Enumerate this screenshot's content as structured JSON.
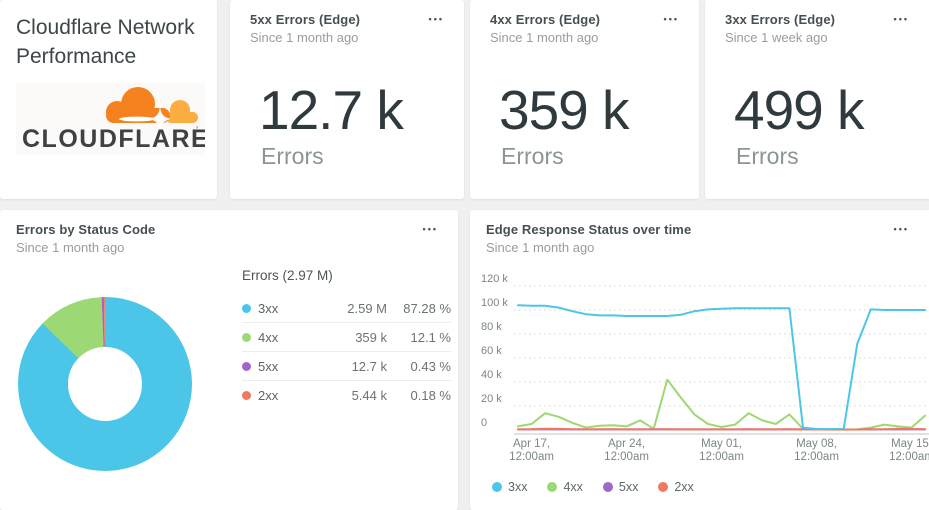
{
  "palette": {
    "c3xx": "#4cc6e8",
    "c4xx": "#9cd873",
    "c5xx": "#a266c8",
    "c2xx": "#f0785c",
    "cloudflare_orange": "#f6821f",
    "cloudflare_light_orange": "#fbad41"
  },
  "icons": {
    "menu_dots": "•••"
  },
  "header_card": {
    "title": "Cloudflare Network Performance",
    "logo_text": "CLOUDFLARE"
  },
  "metric_cards": [
    {
      "title": "5xx Errors (Edge)",
      "subtitle": "Since 1 month ago",
      "value": "12.7 k",
      "label": "Errors"
    },
    {
      "title": "4xx Errors (Edge)",
      "subtitle": "Since 1 month ago",
      "value": "359 k",
      "label": "Errors"
    },
    {
      "title": "3xx Errors (Edge)",
      "subtitle": "Since 1 week ago",
      "value": "499 k",
      "label": "Errors"
    }
  ],
  "pie_card": {
    "title": "Errors by Status Code",
    "subtitle": "Since 1 month ago",
    "table_title": "Errors (2.97 M)"
  },
  "line_card": {
    "title": "Edge Response Status over time",
    "subtitle": "Since 1 month ago"
  },
  "chart_data": [
    {
      "type": "pie",
      "title": "Errors by Status Code",
      "total_label": "Errors (2.97 M)",
      "legend_position": "right-table",
      "slices": [
        {
          "name": "3xx",
          "value_label": "2.59 M",
          "pct": 87.28,
          "pct_label": "87.28 %",
          "color": "#4cc6e8"
        },
        {
          "name": "4xx",
          "value_label": "359 k",
          "pct": 12.1,
          "pct_label": "12.1 %",
          "color": "#9cd873"
        },
        {
          "name": "5xx",
          "value_label": "12.7 k",
          "pct": 0.43,
          "pct_label": "0.43 %",
          "color": "#a266c8"
        },
        {
          "name": "2xx",
          "value_label": "5.44 k",
          "pct": 0.18,
          "pct_label": "0.18 %",
          "color": "#f0785c"
        }
      ]
    },
    {
      "type": "line",
      "title": "Edge Response Status over time",
      "xlabel": "",
      "ylabel": "",
      "ylim_k": [
        0,
        130
      ],
      "grid": "dotted-horizontal",
      "legend_position": "bottom-left",
      "y_ticks": [
        {
          "value_k": 0,
          "label": "0"
        },
        {
          "value_k": 20,
          "label": "20 k"
        },
        {
          "value_k": 40,
          "label": "40 k"
        },
        {
          "value_k": 60,
          "label": "60 k"
        },
        {
          "value_k": 80,
          "label": "80 k"
        },
        {
          "value_k": 100,
          "label": "100 k"
        },
        {
          "value_k": 120,
          "label": "120 k"
        }
      ],
      "x_ticks": [
        {
          "day": 1,
          "line1": "Apr 17,",
          "line2": "12:00am"
        },
        {
          "day": 8,
          "line1": "Apr 24,",
          "line2": "12:00am"
        },
        {
          "day": 15,
          "line1": "May 01,",
          "line2": "12:00am"
        },
        {
          "day": 22,
          "line1": "May 08,",
          "line2": "12:00am"
        },
        {
          "day": 29,
          "line1": "May 15,",
          "line2": "12:00am"
        }
      ],
      "x": [
        "Apr 16",
        "Apr 17",
        "Apr 18",
        "Apr 19",
        "Apr 20",
        "Apr 21",
        "Apr 22",
        "Apr 23",
        "Apr 24",
        "Apr 25",
        "Apr 26",
        "Apr 27",
        "Apr 28",
        "Apr 29",
        "Apr 30",
        "May 01",
        "May 02",
        "May 03",
        "May 04",
        "May 05",
        "May 06",
        "May 07",
        "May 08",
        "May 09",
        "May 10",
        "May 11",
        "May 12",
        "May 13",
        "May 14",
        "May 15",
        "May 16"
      ],
      "values_unit": "k",
      "series": [
        {
          "name": "4xx",
          "color": "#9cd873",
          "values": [
            3,
            5,
            14,
            11,
            6,
            2,
            3.5,
            4,
            3,
            8,
            1,
            42,
            27,
            13,
            5,
            2.5,
            4.5,
            14,
            8,
            5,
            13,
            1,
            0.5,
            0.3,
            0.3,
            0.5,
            2,
            4.5,
            3,
            2,
            12
          ]
        },
        {
          "name": "5xx",
          "color": "#a266c8",
          "values": [
            0.5,
            0.5,
            0.5,
            0.5,
            0.5,
            0.5,
            0.5,
            0.5,
            0.5,
            0.5,
            0.5,
            0.5,
            0.5,
            0.5,
            0.5,
            0.5,
            0.5,
            0.5,
            0.5,
            0.5,
            0.5,
            0.5,
            0.4,
            0.4,
            0.4,
            0.4,
            0.5,
            0.5,
            0.5,
            0.5,
            0.5
          ]
        },
        {
          "name": "2xx",
          "color": "#f0785c",
          "values": [
            0.5,
            0.6,
            1,
            0.9,
            0.6,
            0.5,
            0.5,
            0.6,
            0.5,
            0.5,
            0.6,
            0.6,
            0.5,
            0.5,
            0.5,
            0.5,
            0.5,
            0.6,
            0.5,
            0.5,
            0.6,
            0.5,
            0.4,
            0.4,
            0.4,
            0.4,
            0.5,
            0.6,
            1,
            0.8,
            0.6
          ]
        },
        {
          "name": "3xx",
          "color": "#4cc6e8",
          "values": [
            104,
            103.5,
            103.5,
            102,
            99,
            96.5,
            95.5,
            95.5,
            95,
            95,
            95,
            95,
            96,
            99,
            100.5,
            101,
            101.5,
            101.5,
            101.5,
            101.5,
            101.5,
            2,
            0.8,
            0.8,
            0.8,
            72,
            100.5,
            100,
            100,
            100,
            100
          ]
        }
      ],
      "legend": [
        "3xx",
        "4xx",
        "5xx",
        "2xx"
      ]
    }
  ]
}
